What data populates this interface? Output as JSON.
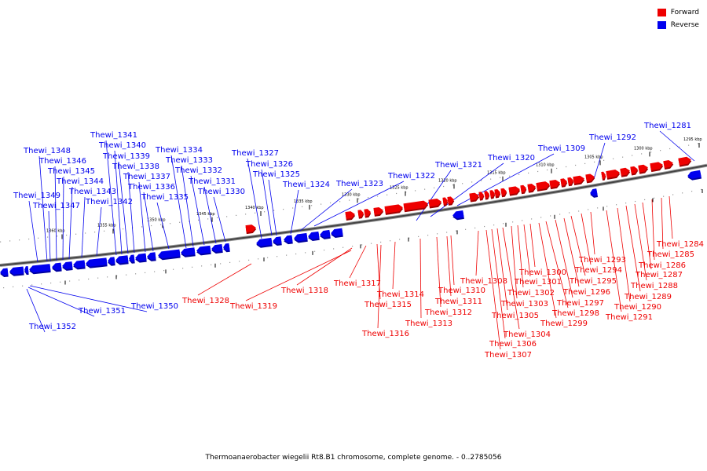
{
  "legend": {
    "forward_label": "Forward",
    "reverse_label": "Reverse",
    "forward_color": "#ee0000",
    "reverse_color": "#0000ee"
  },
  "caption": "Thermoanaerobacter wiegelii Rt8.B1 chromosome, complete genome. - 0..2785056",
  "scale_labels": [
    "1295 kbp",
    "1300 kbp",
    "1305 kbp",
    "1310 kbp",
    "1315 kbp",
    "1320 kbp",
    "1325 kbp",
    "1330 kbp",
    "1335 kbp",
    "1340 kbp",
    "1345 kbp",
    "1350 kbp",
    "1355 kbp",
    "1360 kbp"
  ],
  "reverse_genes": [
    "Thewi_1281",
    "Thewi_1292",
    "Thewi_1309",
    "Thewi_1320",
    "Thewi_1321",
    "Thewi_1322",
    "Thewi_1323",
    "Thewi_1324",
    "Thewi_1325",
    "Thewi_1326",
    "Thewi_1327",
    "Thewi_1330",
    "Thewi_1331",
    "Thewi_1332",
    "Thewi_1333",
    "Thewi_1334",
    "Thewi_1335",
    "Thewi_1336",
    "Thewi_1337",
    "Thewi_1338",
    "Thewi_1339",
    "Thewi_1340",
    "Thewi_1341",
    "Thewi_1342",
    "Thewi_1343",
    "Thewi_1344",
    "Thewi_1345",
    "Thewi_1346",
    "Thewi_1347",
    "Thewi_1348",
    "Thewi_1349",
    "Thewi_1350",
    "Thewi_1351",
    "Thewi_1352"
  ],
  "forward_genes": [
    "Thewi_1284",
    "Thewi_1285",
    "Thewi_1286",
    "Thewi_1287",
    "Thewi_1288",
    "Thewi_1289",
    "Thewi_1290",
    "Thewi_1291",
    "Thewi_1293",
    "Thewi_1294",
    "Thewi_1295",
    "Thewi_1296",
    "Thewi_1297",
    "Thewi_1298",
    "Thewi_1299",
    "Thewi_1300",
    "Thewi_1301",
    "Thewi_1302",
    "Thewi_1303",
    "Thewi_1304",
    "Thewi_1305",
    "Thewi_1306",
    "Thewi_1307",
    "Thewi_1308",
    "Thewi_1310",
    "Thewi_1311",
    "Thewi_1312",
    "Thewi_1313",
    "Thewi_1314",
    "Thewi_1315",
    "Thewi_1316",
    "Thewi_1317",
    "Thewi_1318",
    "Thewi_1319",
    "Thewi_1328"
  ]
}
